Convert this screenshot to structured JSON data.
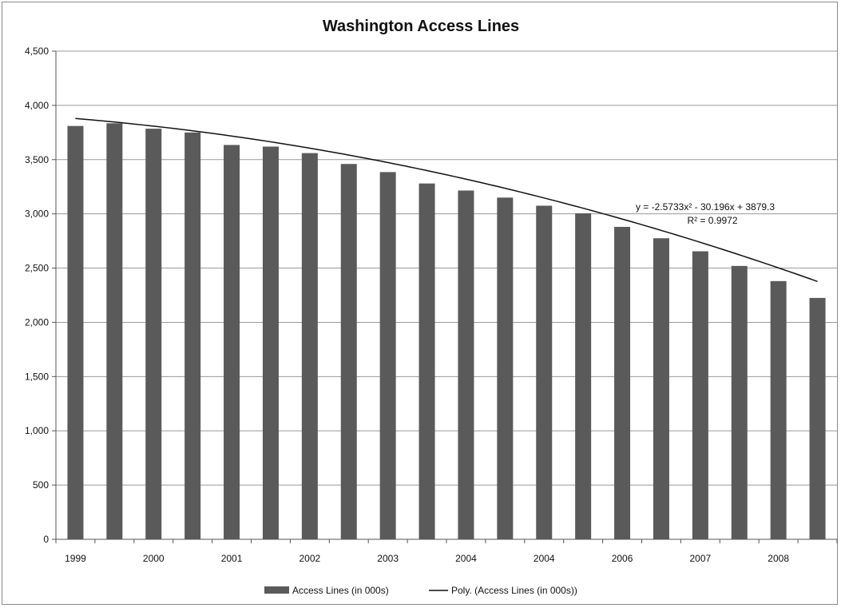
{
  "chart_data": {
    "type": "bar",
    "title": "Washington Access Lines",
    "xlabel": "",
    "ylabel": "",
    "ylim": [
      0,
      4500
    ],
    "y_ticks": [
      0,
      500,
      1000,
      1500,
      2000,
      2500,
      3000,
      3500,
      4000,
      4500
    ],
    "y_tick_labels": [
      "0",
      "500",
      "1,000",
      "1,500",
      "2,000",
      "2,500",
      "3,000",
      "3,500",
      "4,000",
      "4,500"
    ],
    "x_tick_labels": [
      "1999",
      "2000",
      "2001",
      "2002",
      "2003",
      "2004",
      "2004",
      "2006",
      "2007",
      "2008"
    ],
    "grid": true,
    "legend_position": "bottom",
    "series": [
      {
        "name": "Access Lines (in 000s)",
        "type": "bar",
        "color": "#5a5a5a",
        "values": [
          3810,
          3835,
          3785,
          3750,
          3635,
          3620,
          3560,
          3460,
          3385,
          3280,
          3215,
          3150,
          3075,
          3005,
          2880,
          2775,
          2655,
          2520,
          2380,
          2225
        ]
      },
      {
        "name": "Poly. (Access Lines (in 000s))",
        "type": "line",
        "color": "#111111",
        "coefficients": {
          "a": -2.5733,
          "b": -30.196,
          "c": 3879.3
        }
      }
    ],
    "annotations": {
      "equation": "y = -2.5733x² - 30.196x + 3879.3",
      "r_squared": "R² = 0.9972"
    }
  }
}
